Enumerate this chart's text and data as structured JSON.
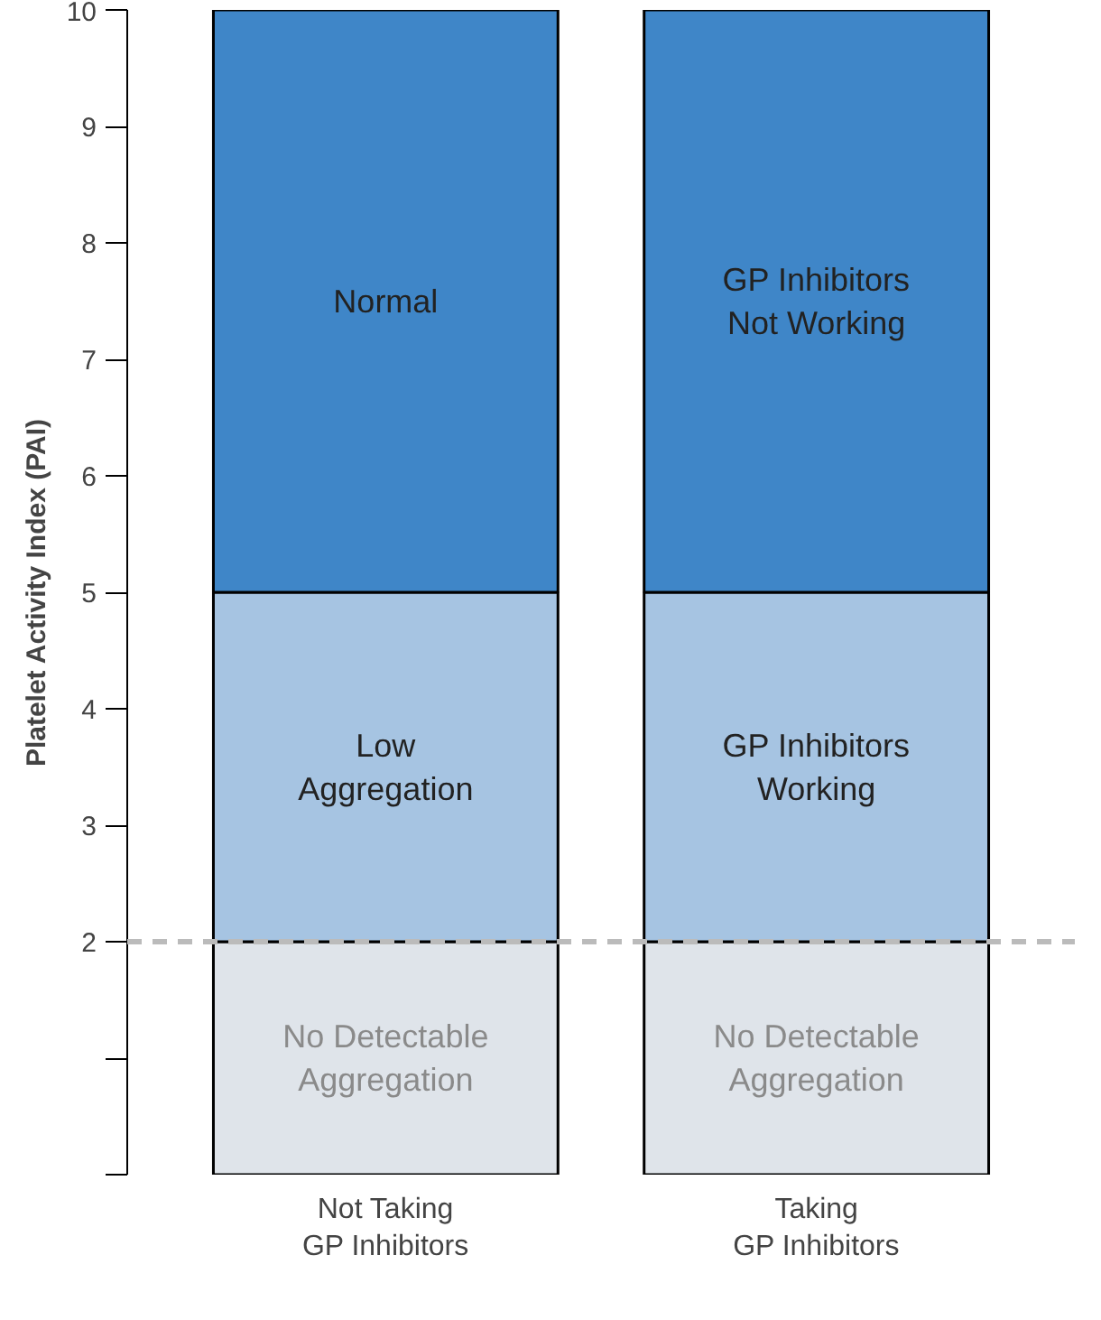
{
  "chart_data": {
    "type": "bar",
    "stacked": true,
    "categories": [
      "Not Taking\nGP Inhibitors",
      "Taking\nGP Inhibitors"
    ],
    "ylabel": "Platelet Activity Index (PAI)",
    "ylim": [
      0,
      10
    ],
    "yticks": [
      {
        "value": 0,
        "label": null
      },
      {
        "value": 1,
        "label": null
      },
      2,
      3,
      4,
      5,
      6,
      7,
      8,
      9,
      10
    ],
    "grid": false,
    "series": [
      {
        "color": "#dfe4ea",
        "values": [
          2,
          2
        ],
        "value_labels": [
          "No Detectable\nAggregation",
          "No Detectable\nAggregation"
        ]
      },
      {
        "color": "#a6c4e2",
        "values": [
          3,
          3
        ],
        "value_labels": [
          "Low\nAggregation",
          "GP Inhibitors\nWorking"
        ]
      },
      {
        "color": "#3f86c8",
        "values": [
          5,
          5
        ],
        "value_labels": [
          "Normal",
          "GP Inhibitors\nNot Working"
        ]
      }
    ],
    "ref_lines": [
      {
        "axis": "y",
        "value": 2,
        "color": "#bbbbbb",
        "line_style": "dashed"
      }
    ]
  }
}
